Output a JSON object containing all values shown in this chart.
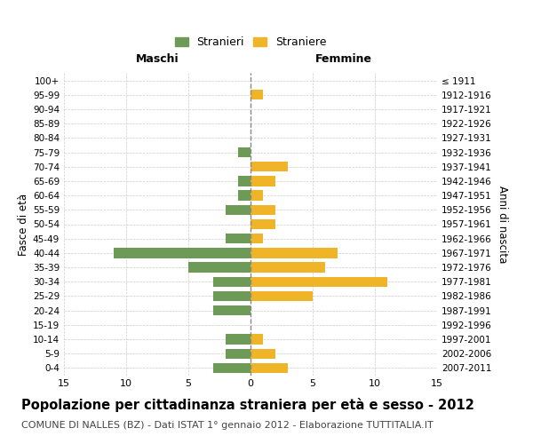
{
  "age_groups": [
    "0-4",
    "5-9",
    "10-14",
    "15-19",
    "20-24",
    "25-29",
    "30-34",
    "35-39",
    "40-44",
    "45-49",
    "50-54",
    "55-59",
    "60-64",
    "65-69",
    "70-74",
    "75-79",
    "80-84",
    "85-89",
    "90-94",
    "95-99",
    "100+"
  ],
  "birth_years": [
    "2007-2011",
    "2002-2006",
    "1997-2001",
    "1992-1996",
    "1987-1991",
    "1982-1986",
    "1977-1981",
    "1972-1976",
    "1967-1971",
    "1962-1966",
    "1957-1961",
    "1952-1956",
    "1947-1951",
    "1942-1946",
    "1937-1941",
    "1932-1936",
    "1927-1931",
    "1922-1926",
    "1917-1921",
    "1912-1916",
    "≤ 1911"
  ],
  "males": [
    3,
    2,
    2,
    0,
    3,
    3,
    3,
    5,
    11,
    2,
    0,
    2,
    1,
    1,
    0,
    1,
    0,
    0,
    0,
    0,
    0
  ],
  "females": [
    3,
    2,
    1,
    0,
    0,
    5,
    11,
    6,
    7,
    1,
    2,
    2,
    1,
    2,
    3,
    0,
    0,
    0,
    0,
    1,
    0
  ],
  "male_color": "#6d9b57",
  "female_color": "#f0b429",
  "background_color": "#ffffff",
  "grid_color": "#cccccc",
  "center_line_color": "#888888",
  "xlim": 15,
  "title": "Popolazione per cittadinanza straniera per età e sesso - 2012",
  "subtitle": "COMUNE DI NALLES (BZ) - Dati ISTAT 1° gennaio 2012 - Elaborazione TUTTITALIA.IT",
  "xlabel_left": "Maschi",
  "xlabel_right": "Femmine",
  "ylabel_left": "Fasce di età",
  "ylabel_right": "Anni di nascita",
  "legend_male": "Stranieri",
  "legend_female": "Straniere",
  "title_fontsize": 10.5,
  "subtitle_fontsize": 8.0
}
